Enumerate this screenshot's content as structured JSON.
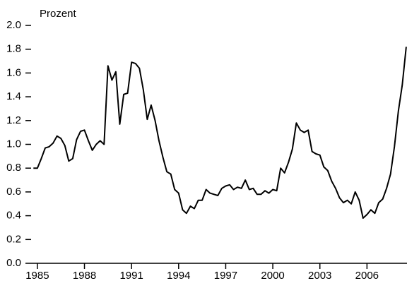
{
  "chart_data": {
    "type": "line",
    "y_label": "Prozent",
    "x": [
      1984.75,
      1985.0,
      1985.25,
      1985.5,
      1985.75,
      1986.0,
      1986.25,
      1986.5,
      1986.75,
      1987.0,
      1987.25,
      1987.5,
      1987.75,
      1988.0,
      1988.25,
      1988.5,
      1988.75,
      1989.0,
      1989.25,
      1989.5,
      1989.75,
      1990.0,
      1990.25,
      1990.5,
      1990.75,
      1991.0,
      1991.25,
      1991.5,
      1991.75,
      1992.0,
      1992.25,
      1992.5,
      1992.75,
      1993.0,
      1993.25,
      1993.5,
      1993.75,
      1994.0,
      1994.25,
      1994.5,
      1994.75,
      1995.0,
      1995.25,
      1995.5,
      1995.75,
      1996.0,
      1996.25,
      1996.5,
      1996.75,
      1997.0,
      1997.25,
      1997.5,
      1997.75,
      1998.0,
      1998.25,
      1998.5,
      1998.75,
      1999.0,
      1999.25,
      1999.5,
      1999.75,
      2000.0,
      2000.25,
      2000.5,
      2000.75,
      2001.0,
      2001.25,
      2001.5,
      2001.75,
      2002.0,
      2002.25,
      2002.5,
      2002.75,
      2003.0,
      2003.25,
      2003.5,
      2003.75,
      2004.0,
      2004.25,
      2004.5,
      2004.75,
      2005.0,
      2005.25,
      2005.5,
      2005.75,
      2006.0,
      2006.25,
      2006.5,
      2006.75,
      2007.0,
      2007.25,
      2007.5,
      2007.75,
      2008.0,
      2008.25,
      2008.5
    ],
    "series": [
      {
        "color": "#000000",
        "values": [
          0.8,
          0.8,
          0.88,
          0.97,
          0.98,
          1.01,
          1.07,
          1.05,
          0.99,
          0.86,
          0.88,
          1.04,
          1.11,
          1.12,
          1.03,
          0.95,
          1.0,
          1.03,
          1.0,
          1.66,
          1.54,
          1.61,
          1.17,
          1.42,
          1.43,
          1.69,
          1.68,
          1.64,
          1.46,
          1.21,
          1.33,
          1.2,
          1.03,
          0.89,
          0.77,
          0.75,
          0.62,
          0.59,
          0.45,
          0.42,
          0.48,
          0.46,
          0.53,
          0.53,
          0.62,
          0.59,
          0.58,
          0.57,
          0.63,
          0.65,
          0.66,
          0.62,
          0.64,
          0.63,
          0.7,
          0.62,
          0.63,
          0.58,
          0.58,
          0.61,
          0.59,
          0.62,
          0.61,
          0.8,
          0.76,
          0.85,
          0.96,
          1.18,
          1.12,
          1.1,
          1.12,
          0.94,
          0.92,
          0.91,
          0.81,
          0.78,
          0.69,
          0.63,
          0.55,
          0.51,
          0.53,
          0.5,
          0.6,
          0.53,
          0.38,
          0.41,
          0.45,
          0.42,
          0.51,
          0.54,
          0.63,
          0.75,
          0.98,
          1.28,
          1.5,
          1.82
        ]
      }
    ],
    "xlim": [
      1984.6,
      2008.55
    ],
    "xticks": [
      1985,
      1988,
      1991,
      1994,
      1997,
      2000,
      2003,
      2006
    ],
    "ylim": [
      0,
      2
    ],
    "yticks": [
      {
        "value": 0,
        "label": "0.0"
      },
      0.2,
      0.4,
      0.6,
      0.8,
      {
        "value": 1,
        "label": "1.0"
      },
      1.2,
      1.4,
      1.6,
      1.8,
      {
        "value": 2,
        "label": "2.0"
      }
    ]
  }
}
